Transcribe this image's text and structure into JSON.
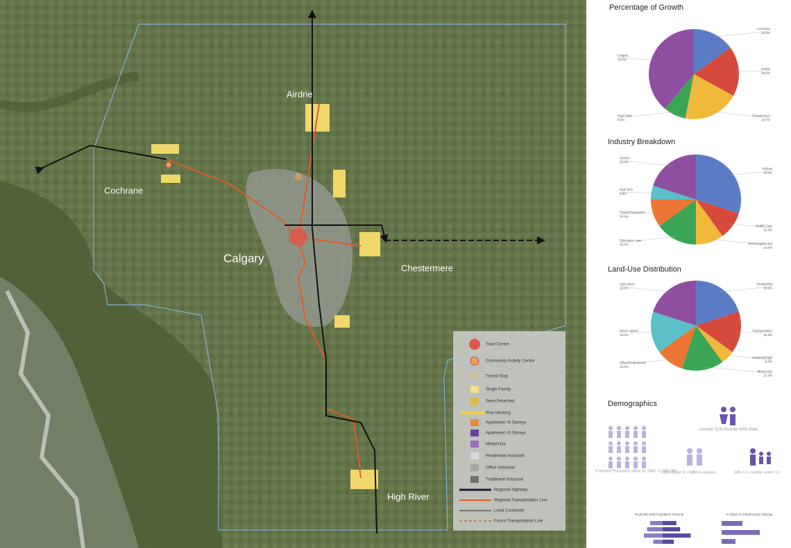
{
  "map": {
    "labels": [
      "Airdrie",
      "Cochrane",
      "Calgary",
      "Chestermere",
      "High River"
    ]
  },
  "legend": [
    "Town Centre",
    "Community Activity Centre",
    "Transit Stop",
    "Single Family",
    "Semi-Detached",
    "Row Housing",
    "Apartment <5 Storeys",
    "Apartment >5 Storeys",
    "Mixed-Use",
    "Residential Industrial",
    "Office Industrial",
    "Traditional Industrial",
    "Regional Highway",
    "Regional Transportation Line",
    "Local Connector",
    "Future Transportation Line"
  ],
  "demographics": {
    "title": "Demographics",
    "gender": "Gender 51% Female 49% Male",
    "influx": "Projected Population Influx by 2040: +1,000,000",
    "couples": "50% single or childless couples",
    "children": "50% 1-3 children under 10"
  },
  "chart_data": [
    {
      "type": "pie",
      "title": "Percentage of Growth",
      "categories": [
        "Cochrane",
        "Airdrie",
        "Chestermere",
        "High River",
        "Calgary"
      ],
      "values": [
        15,
        18,
        20,
        8,
        39
      ],
      "value_labels": [
        "15.0%",
        "18.0%",
        "20.0%",
        "8.0%",
        "39.0%"
      ],
      "colors": [
        "#5b7cc4",
        "#d64a3b",
        "#f0b93a",
        "#3aa655",
        "#8e4fa0"
      ]
    },
    {
      "type": "pie",
      "title": "Industry Breakdown",
      "categories": [
        "Oil/Gas",
        "Health Care",
        "Technologies and",
        "Education, Law,",
        "Trades/Transport'l",
        "High tech",
        "Service"
      ],
      "values": [
        30,
        10,
        10,
        15,
        10,
        5,
        20
      ],
      "value_labels": [
        "30.0%",
        "10.0%",
        "10.0%",
        "15.0%",
        "10.0%",
        "5.0%",
        "20.0%"
      ],
      "colors": [
        "#5b7cc4",
        "#d64a3b",
        "#f0b93a",
        "#3aa655",
        "#ec7533",
        "#5bc0c8",
        "#8e4fa0"
      ]
    },
    {
      "type": "pie",
      "title": "Land-Use Distribution",
      "categories": [
        "Residential",
        "Transportation",
        "Industrial/High",
        "Mixed-Use",
        "Office/Professional",
        "Green Space",
        "Agriculture"
      ],
      "values": [
        20,
        15,
        5,
        15,
        10,
        15,
        20
      ],
      "value_labels": [
        "20.0%",
        "15.0%",
        "5.0%",
        "15.0%",
        "10.0%",
        "15.0%",
        "20.0%"
      ],
      "colors": [
        "#5b7cc4",
        "#d64a3b",
        "#f0b93a",
        "#3aa655",
        "#ec7533",
        "#5bc0c8",
        "#8e4fa0"
      ]
    },
    {
      "type": "pyramid",
      "title": "Projected 2040 Population Pyramid",
      "series": [
        {
          "color": "#8a7fc4",
          "values": [
            20,
            25,
            30,
            15
          ]
        },
        {
          "color": "#5a4a9e",
          "values": [
            22,
            28,
            45,
            18
          ]
        }
      ]
    },
    {
      "type": "hbar",
      "title": "% Share of Infrastructure Savings",
      "values": [
        30,
        55,
        20
      ],
      "color": "#7b6bb8"
    }
  ]
}
